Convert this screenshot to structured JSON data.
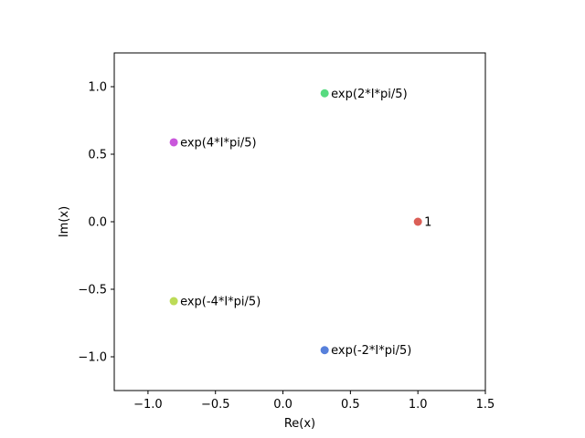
{
  "chart_data": {
    "type": "scatter",
    "title": "",
    "xlabel": "Re(x)",
    "ylabel": "Im(x)",
    "xlim": [
      -1.25,
      1.5
    ],
    "ylim": [
      -1.25,
      1.25
    ],
    "grid": false,
    "x_ticks": [
      {
        "value": -1.0,
        "label": "−1.0"
      },
      {
        "value": -0.5,
        "label": "−0.5"
      },
      {
        "value": 0.0,
        "label": "0.0"
      },
      {
        "value": 0.5,
        "label": "0.5"
      },
      {
        "value": 1.0,
        "label": "1.0"
      },
      {
        "value": 1.5,
        "label": "1.5"
      }
    ],
    "y_ticks": [
      {
        "value": -1.0,
        "label": "−1.0"
      },
      {
        "value": -0.5,
        "label": "−0.5"
      },
      {
        "value": 0.0,
        "label": "0.0"
      },
      {
        "value": 0.5,
        "label": "0.5"
      },
      {
        "value": 1.0,
        "label": "1.0"
      }
    ],
    "points": [
      {
        "label": "1",
        "x": 1.0,
        "y": 0.0,
        "color": "#db5f57"
      },
      {
        "label": "exp(2*I*pi/5)",
        "x": 0.309,
        "y": 0.951,
        "color": "#57db80"
      },
      {
        "label": "exp(4*I*pi/5)",
        "x": -0.809,
        "y": 0.588,
        "color": "#c957db"
      },
      {
        "label": "exp(-4*I*pi/5)",
        "x": -0.809,
        "y": -0.588,
        "color": "#bcdb57"
      },
      {
        "label": "exp(-2*I*pi/5)",
        "x": 0.309,
        "y": -0.951,
        "color": "#5780db"
      }
    ]
  }
}
